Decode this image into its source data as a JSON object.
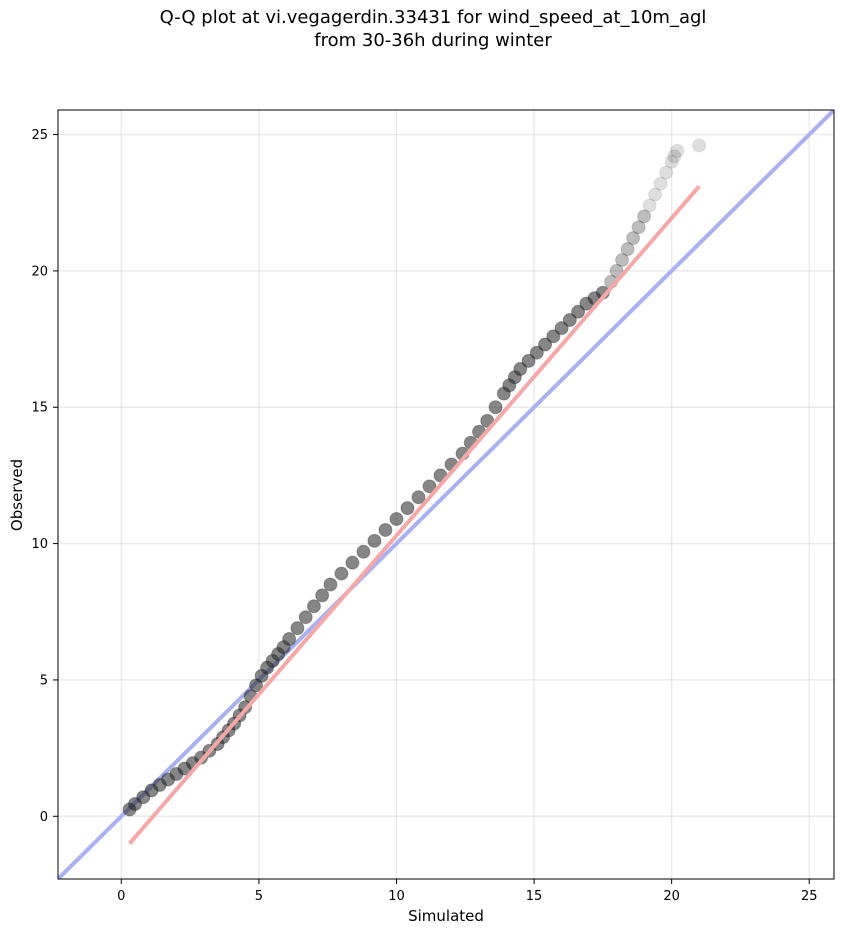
{
  "title_line1": "Q-Q plot at vi.vegagerdin.33431 for wind_speed_at_10m_agl",
  "title_line2": "from 30-36h during winter",
  "chart_data": {
    "type": "scatter",
    "title": "Q-Q plot at vi.vegagerdin.33431 for wind_speed_at_10m_agl from 30-36h during winter",
    "xlabel": "Simulated",
    "ylabel": "Observed",
    "xlim": [
      -2.3,
      25.9
    ],
    "ylim": [
      -2.3,
      25.9
    ],
    "xticks": [
      0,
      5,
      10,
      15,
      20,
      25
    ],
    "yticks": [
      0,
      5,
      10,
      15,
      20,
      25
    ],
    "grid": true,
    "colors": {
      "points": "#222222",
      "identity_line": "#aab0f0",
      "fit_line": "#f4a8a8"
    },
    "identity_line": {
      "x": [
        -2.3,
        25.9
      ],
      "y": [
        -2.3,
        25.9
      ]
    },
    "fit_line": {
      "x": [
        0.3,
        21.0
      ],
      "y": [
        -1.0,
        23.1
      ]
    },
    "quantiles": {
      "x": [
        0.3,
        0.5,
        0.8,
        1.1,
        1.4,
        1.7,
        2.0,
        2.3,
        2.6,
        2.9,
        3.2,
        3.5,
        3.7,
        3.9,
        4.1,
        4.3,
        4.5,
        4.7,
        4.9,
        5.1,
        5.3,
        5.5,
        5.7,
        5.9,
        6.1,
        6.4,
        6.7,
        7.0,
        7.3,
        7.6,
        8.0,
        8.4,
        8.8,
        9.2,
        9.6,
        10.0,
        10.4,
        10.8,
        11.2,
        11.6,
        12.0,
        12.4,
        12.7,
        13.0,
        13.3,
        13.6,
        13.9,
        14.1,
        14.3,
        14.5,
        14.8,
        15.1,
        15.4,
        15.7,
        16.0,
        16.3,
        16.6,
        16.9,
        17.2,
        17.5,
        17.8,
        18.0,
        18.2,
        18.4,
        18.6,
        18.8,
        19.0,
        19.2,
        19.4,
        19.6,
        19.8,
        20.0,
        20.1,
        20.2,
        21.0
      ],
      "y": [
        0.25,
        0.45,
        0.7,
        0.95,
        1.15,
        1.35,
        1.55,
        1.75,
        1.95,
        2.15,
        2.4,
        2.65,
        2.9,
        3.15,
        3.4,
        3.7,
        4.0,
        4.4,
        4.8,
        5.15,
        5.45,
        5.7,
        5.95,
        6.2,
        6.5,
        6.9,
        7.3,
        7.7,
        8.1,
        8.5,
        8.9,
        9.3,
        9.7,
        10.1,
        10.5,
        10.9,
        11.3,
        11.7,
        12.1,
        12.5,
        12.9,
        13.3,
        13.7,
        14.1,
        14.5,
        15.0,
        15.5,
        15.8,
        16.1,
        16.4,
        16.7,
        17.0,
        17.3,
        17.6,
        17.9,
        18.2,
        18.5,
        18.8,
        19.0,
        19.2,
        19.6,
        20.0,
        20.4,
        20.8,
        21.2,
        21.6,
        22.0,
        22.4,
        22.8,
        23.2,
        23.6,
        24.0,
        24.2,
        24.4,
        24.6
      ]
    }
  }
}
